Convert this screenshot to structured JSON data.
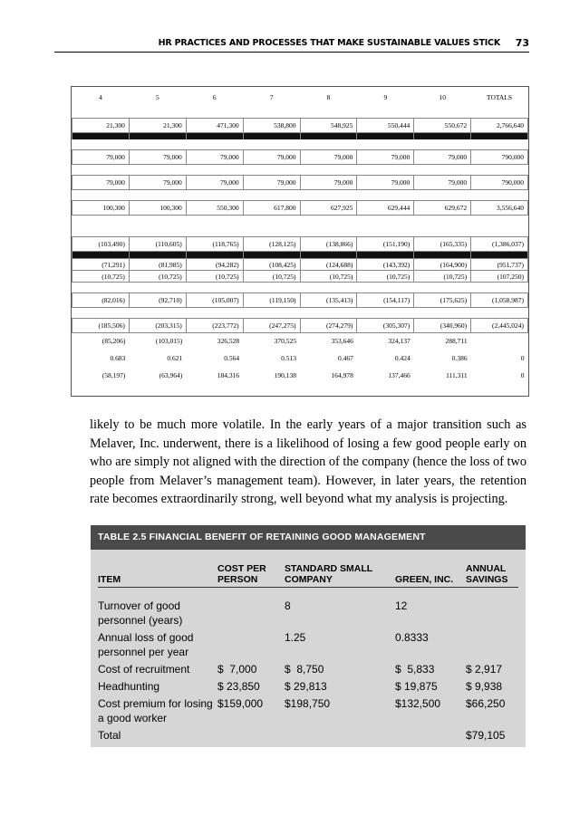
{
  "header": {
    "title": "HR PRACTICES AND PROCESSES THAT MAKE SUSTAINABLE VALUES STICK",
    "page": "73"
  },
  "top_table": {
    "header": [
      "4",
      "5",
      "6",
      "7",
      "8",
      "9",
      "10",
      "TOTALS"
    ],
    "rows": [
      [
        "21,300",
        "21,300",
        "471,300",
        "538,800",
        "548,925",
        "550,444",
        "550,672",
        "2,766,640"
      ],
      [
        "79,000",
        "79,000",
        "79,000",
        "79,000",
        "79,000",
        "79,000",
        "79,000",
        "790,000"
      ],
      [
        "79,000",
        "79,000",
        "79,000",
        "79,000",
        "79,000",
        "79,000",
        "79,000",
        "790,000"
      ],
      [
        "100,300",
        "100,300",
        "550,300",
        "617,800",
        "627,925",
        "629,444",
        "629,672",
        "3,556,640"
      ],
      [
        "(103,490)",
        "(110,605)",
        "(118,765)",
        "(128,125)",
        "(138,866)",
        "(151,190)",
        "(165,335)",
        "(1,386,037)"
      ],
      [
        "(71,291)",
        "(81,985)",
        "(94,282)",
        "(108,425)",
        "(124,688)",
        "(143,392)",
        "(164,900)",
        "(951,737)"
      ],
      [
        "(10,725)",
        "(10,725)",
        "(10,725)",
        "(10,725)",
        "(10,725)",
        "(10,725)",
        "(10,725)",
        "(107,250)"
      ],
      [
        "(82,016)",
        "(92,710)",
        "(105,007)",
        "(119,150)",
        "(135,413)",
        "(154,117)",
        "(175,625)",
        "(1,058,987)"
      ],
      [
        "(185,506)",
        "(203,315)",
        "(223,772)",
        "(247,275)",
        "(274,279)",
        "(305,307)",
        "(340,960)",
        "(2,445,024)"
      ],
      [
        "(85,206)",
        "(103,015)",
        "326,528",
        "370,525",
        "353,646",
        "324,137",
        "288,711",
        null
      ],
      [
        "0.683",
        "0.621",
        "0.564",
        "0.513",
        "0.467",
        "0.424",
        "0.386",
        "0"
      ],
      [
        "(58,197)",
        "(63,964)",
        "184,316",
        "190,138",
        "164,978",
        "137,466",
        "111,311",
        "0"
      ]
    ]
  },
  "paragraph": "likely to be much more volatile. In the early years of a major transition such as Melaver, Inc. underwent, there is a likelihood of losing a few good people early on who are simply not aligned with the direction of the company (hence the loss of two people from Melaver’s management team). However, in later years, the retention rate becomes extraordinarily strong, well beyond what my analysis is projecting.",
  "table": {
    "title": "TABLE 2.5  FINANCIAL BENEFIT OF RETAINING GOOD MANAGEMENT",
    "columns": [
      "ITEM",
      "COST PER PERSON",
      "STANDARD SMALL COMPANY",
      "GREEN, INC.",
      "ANNUAL SAVINGS"
    ],
    "rows": [
      [
        "Turnover of good personnel (years)",
        null,
        "8",
        "12",
        null
      ],
      [
        "Annual loss of good personnel per year",
        null,
        "1.25",
        "0.8333",
        null
      ],
      [
        "Cost of recruitment",
        "$  7,000",
        "$  8,750",
        "$  5,833",
        "$ 2,917"
      ],
      [
        "Headhunting",
        "$ 23,850",
        "$ 29,813",
        "$ 19,875",
        "$ 9,938"
      ],
      [
        "Cost premium for losing a good worker",
        "$159,000",
        "$198,750",
        "$132,500",
        "$66,250"
      ],
      [
        "Total",
        null,
        null,
        null,
        "$79,105"
      ]
    ]
  }
}
